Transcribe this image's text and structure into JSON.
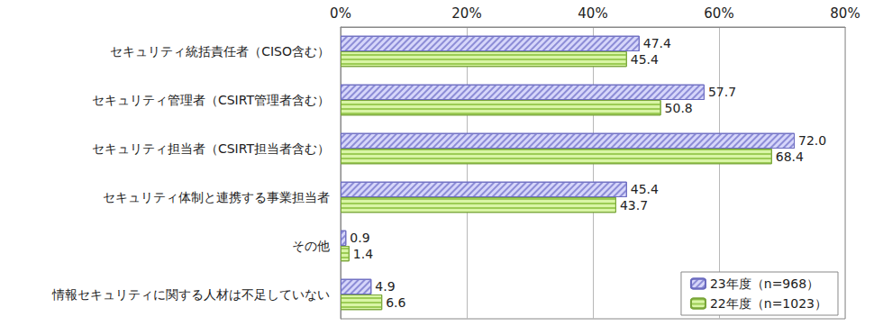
{
  "chart_data": {
    "type": "bar",
    "orientation": "horizontal",
    "categories": [
      "セキュリティ統括責任者（CISO含む）",
      "セキュリティ管理者（CSIRT管理者含む）",
      "セキュリティ担当者（CSIRT担当者含む）",
      "セキュリティ体制と連携する事業担当者",
      "その他",
      "情報セキュリティに関する人材は不足していない"
    ],
    "series": [
      {
        "name": "23年度（n=968）",
        "color": "#d6d6fa",
        "values": [
          47.4,
          57.7,
          72.0,
          45.4,
          0.9,
          4.9
        ],
        "value_labels": [
          "47.4",
          "57.7",
          "72.0",
          "45.4",
          "0.9",
          "4.9"
        ]
      },
      {
        "name": "22年度（n=1023）",
        "color": "#d9f5a6",
        "values": [
          45.4,
          50.8,
          68.4,
          43.7,
          1.4,
          6.6
        ],
        "value_labels": [
          "45.4",
          "50.8",
          "68.4",
          "43.7",
          "1.4",
          "6.6"
        ]
      }
    ],
    "xlim": [
      0,
      80
    ],
    "xticks": [
      {
        "value": 0,
        "label": "0%"
      },
      {
        "value": 20,
        "label": "20%"
      },
      {
        "value": 40,
        "label": "40%"
      },
      {
        "value": 60,
        "label": "60%"
      },
      {
        "value": 80,
        "label": "80%"
      }
    ],
    "grid": true,
    "data_labels": true,
    "legend": "lower right"
  }
}
